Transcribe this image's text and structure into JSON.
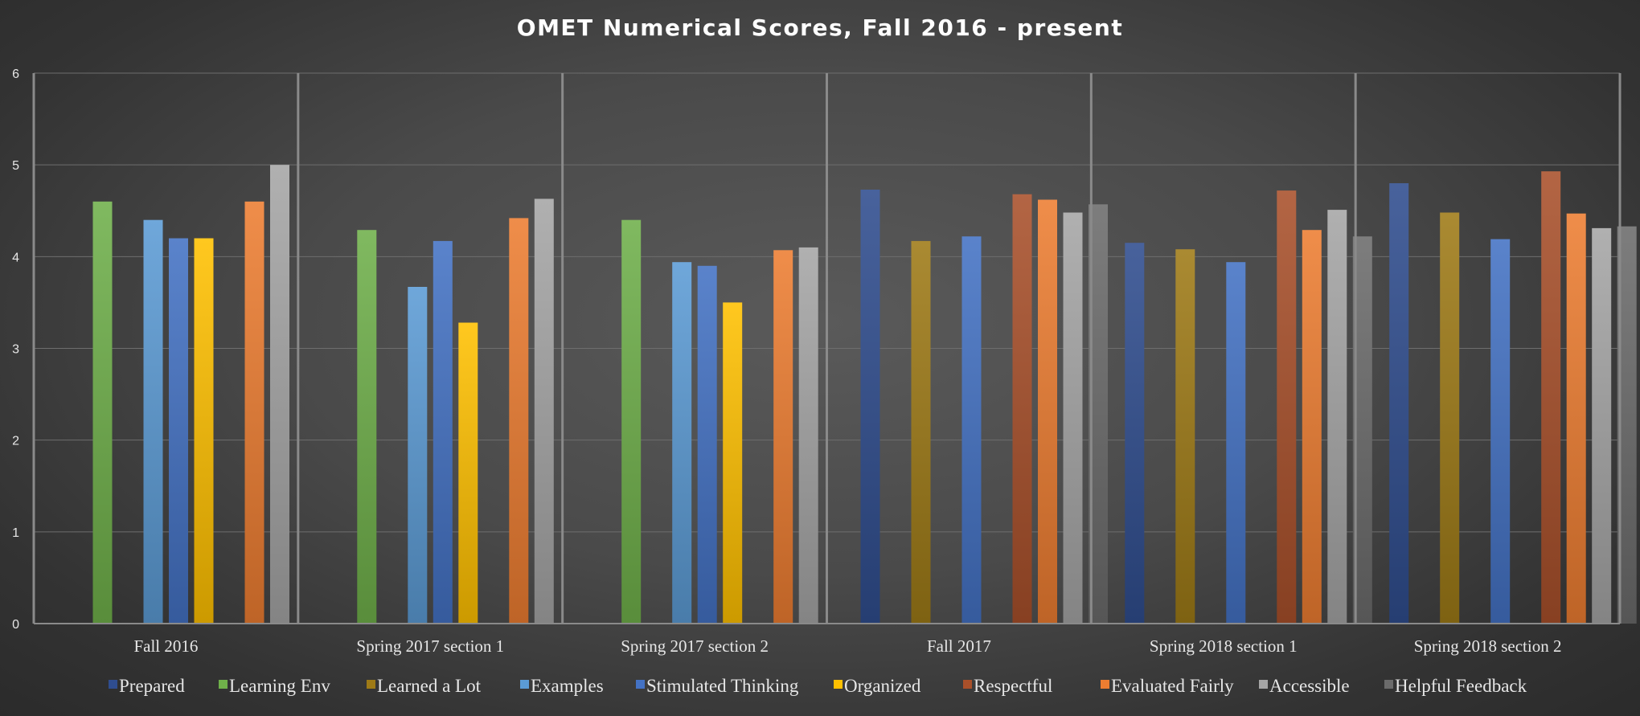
{
  "chart_data": {
    "type": "bar",
    "title": "OMET Numerical Scores, Fall 2016 - present",
    "xlabel": "",
    "ylabel": "",
    "ylim": [
      0,
      6
    ],
    "yticks": [
      "0",
      "1",
      "2",
      "3",
      "4",
      "5",
      "6"
    ],
    "grid": true,
    "legend_position": "bottom",
    "categories": [
      "Fall 2016",
      "Spring 2017 section 1",
      "Spring 2017 section 2",
      "Fall 2017",
      "Spring 2018 section 1",
      "Spring 2018 section 2"
    ],
    "series": [
      {
        "name": "Prepared",
        "color": "#2f4d8f",
        "values": [
          null,
          null,
          null,
          4.73,
          4.15,
          4.8
        ]
      },
      {
        "name": "Learning Env",
        "color": "#6fb04a",
        "values": [
          4.6,
          4.29,
          4.4,
          null,
          null,
          null
        ]
      },
      {
        "name": "Learned a Lot",
        "color": "#9e7a16",
        "values": [
          null,
          null,
          null,
          4.17,
          4.08,
          4.48
        ]
      },
      {
        "name": "Examples",
        "color": "#5b9bd5",
        "values": [
          4.4,
          3.67,
          3.94,
          null,
          null,
          null
        ]
      },
      {
        "name": "Stimulated Thinking",
        "color": "#4472c4",
        "values": [
          4.2,
          4.17,
          3.9,
          4.22,
          3.94,
          4.19
        ]
      },
      {
        "name": "Organized",
        "color": "#ffc000",
        "values": [
          4.2,
          3.28,
          3.5,
          null,
          null,
          null
        ]
      },
      {
        "name": "Respectful",
        "color": "#a9502a",
        "values": [
          null,
          null,
          null,
          4.68,
          4.72,
          4.93
        ]
      },
      {
        "name": "Evaluated Fairly",
        "color": "#ed7d31",
        "values": [
          4.6,
          4.42,
          4.07,
          4.62,
          4.29,
          4.47
        ]
      },
      {
        "name": "Accessible",
        "color": "#a5a5a5",
        "values": [
          5.0,
          4.63,
          4.1,
          4.48,
          4.51,
          4.31
        ]
      },
      {
        "name": "Helpful Feedback",
        "color": "#6b6b6b",
        "values": [
          null,
          null,
          null,
          4.57,
          4.22,
          4.33
        ]
      }
    ]
  }
}
